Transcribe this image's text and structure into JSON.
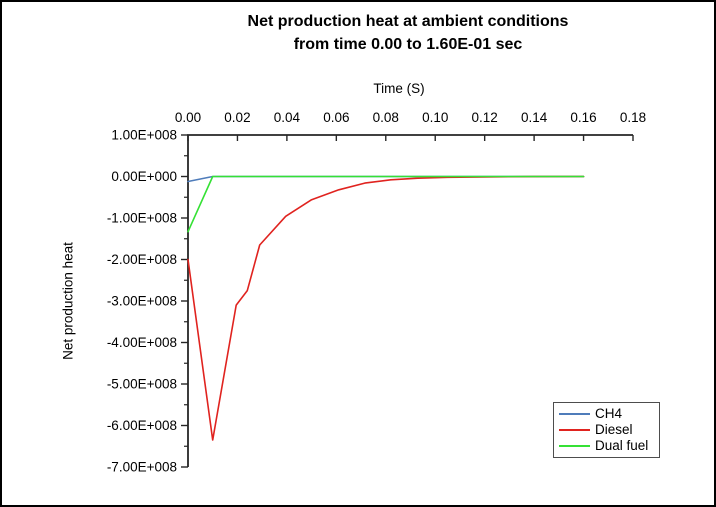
{
  "colors": {
    "background": "#ffffff",
    "frame_border": "#000000",
    "axis": "#262626",
    "text": "#000000",
    "legend_border": "#4d4d4d"
  },
  "chart_data": {
    "type": "line",
    "title_line1": "Net production heat at ambient conditions",
    "title_line2": "from time 0.00 to 1.60E-01 sec",
    "grid": false,
    "legend_position": "bottom-right-inside",
    "x_axis": {
      "label": "Time (S)",
      "position": "top",
      "min": 0.0,
      "max": 0.18,
      "ticks": [
        {
          "v": 0.0,
          "label": "0.00"
        },
        {
          "v": 0.02,
          "label": "0.02"
        },
        {
          "v": 0.04,
          "label": "0.04"
        },
        {
          "v": 0.06,
          "label": "0.06"
        },
        {
          "v": 0.08,
          "label": "0.08"
        },
        {
          "v": 0.1,
          "label": "0.10"
        },
        {
          "v": 0.12,
          "label": "0.12"
        },
        {
          "v": 0.14,
          "label": "0.14"
        },
        {
          "v": 0.16,
          "label": "0.16"
        },
        {
          "v": 0.18,
          "label": "0.18"
        }
      ]
    },
    "y_axis": {
      "label": "Net production heat",
      "position": "left",
      "min": -700000000,
      "max": 100000000,
      "has_minor_ticks": true,
      "ticks": [
        {
          "v": 100000000,
          "label": "1.00E+008"
        },
        {
          "v": 0,
          "label": "0.00E+000"
        },
        {
          "v": -100000000,
          "label": "-1.00E+008"
        },
        {
          "v": -200000000,
          "label": "-2.00E+008"
        },
        {
          "v": -300000000,
          "label": "-3.00E+008"
        },
        {
          "v": -400000000,
          "label": "-4.00E+008"
        },
        {
          "v": -500000000,
          "label": "-5.00E+008"
        },
        {
          "v": -600000000,
          "label": "-6.00E+008"
        },
        {
          "v": -700000000,
          "label": "-7.00E+008"
        }
      ]
    },
    "series": [
      {
        "name": "CH4",
        "color": "#4f7cba",
        "points": [
          [
            0,
            -12000000
          ],
          [
            0.01,
            0
          ],
          [
            0.16,
            0
          ]
        ]
      },
      {
        "name": "Diesel",
        "color": "#e0231f",
        "points": [
          [
            0,
            -200000000
          ],
          [
            0.01,
            -635000000
          ],
          [
            0.0195,
            -310000000
          ],
          [
            0.024,
            -275000000
          ],
          [
            0.029,
            -165000000
          ],
          [
            0.0395,
            -96000000
          ],
          [
            0.05,
            -56000000
          ],
          [
            0.061,
            -32000000
          ],
          [
            0.0715,
            -16000000
          ],
          [
            0.082,
            -8000000
          ],
          [
            0.093,
            -4000000
          ],
          [
            0.105,
            -2000000
          ],
          [
            0.12,
            -1000000
          ],
          [
            0.14,
            -300000
          ],
          [
            0.16,
            0
          ]
        ]
      },
      {
        "name": "Dual fuel",
        "color": "#35e135",
        "points": [
          [
            0,
            -133000000
          ],
          [
            0.01,
            0
          ],
          [
            0.16,
            0
          ]
        ]
      }
    ]
  }
}
